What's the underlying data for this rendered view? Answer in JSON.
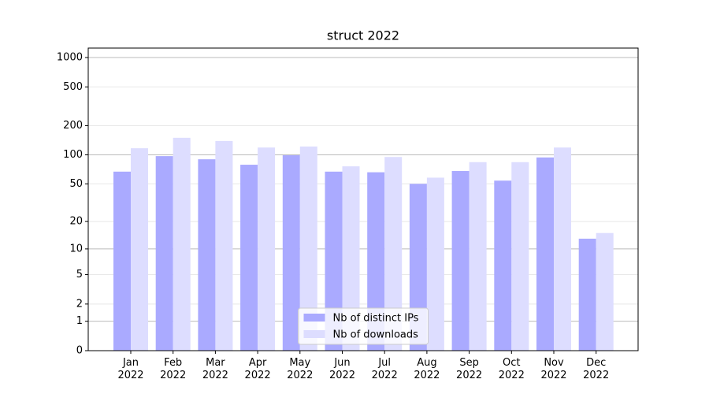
{
  "chart_data": {
    "type": "bar",
    "title": "struct 2022",
    "categories": [
      "Jan\n2022",
      "Feb\n2022",
      "Mar\n2022",
      "Apr\n2022",
      "May\n2022",
      "Jun\n2022",
      "Jul\n2022",
      "Aug\n2022",
      "Sep\n2022",
      "Oct\n2022",
      "Nov\n2022",
      "Dec\n2022"
    ],
    "series": [
      {
        "name": "Nb of distinct IPs",
        "color": "#aaaaff",
        "values": [
          67,
          97,
          90,
          79,
          99,
          67,
          66,
          50,
          68,
          54,
          94,
          13
        ]
      },
      {
        "name": "Nb of downloads",
        "color": "#ddddff",
        "values": [
          117,
          150,
          139,
          119,
          122,
          76,
          95,
          58,
          84,
          84,
          119,
          15
        ]
      }
    ],
    "yscale": "log1p",
    "ylim": [
      0,
      1250
    ],
    "yticks": [
      0,
      1,
      2,
      5,
      10,
      20,
      50,
      100,
      200,
      500,
      1000
    ],
    "grid": true,
    "legend": "lower center"
  }
}
